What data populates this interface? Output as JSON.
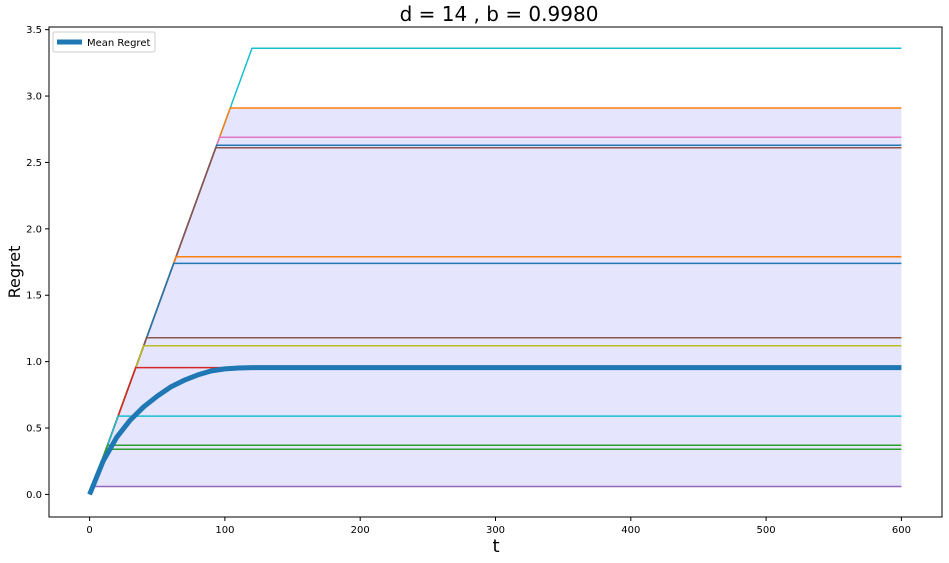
{
  "chart_data": {
    "type": "line",
    "title": "d = 14 , b = 0.9980",
    "xlabel": "t",
    "ylabel": "Regret",
    "xlim": [
      -30,
      630
    ],
    "ylim": [
      -0.17,
      3.52
    ],
    "xticks": [
      0,
      100,
      200,
      300,
      400,
      500,
      600
    ],
    "yticks": [
      0.0,
      0.5,
      1.0,
      1.5,
      2.0,
      2.5,
      3.0,
      3.5
    ],
    "ytick_labels": [
      "0.0",
      "0.5",
      "1.0",
      "1.5",
      "2.0",
      "2.5",
      "3.0",
      "3.5"
    ],
    "legend_position": "top-left",
    "legend": [
      {
        "label": "Mean Regret",
        "color": "#1f77b4"
      }
    ],
    "growth_slope": 0.028,
    "t_max": 600,
    "fill_band": {
      "lower": 0.06,
      "upper": 2.91,
      "color": "#e5e5fd"
    },
    "series": [
      {
        "final": 3.36,
        "color": "#17becf"
      },
      {
        "final": 2.91,
        "color": "#ff7f0e"
      },
      {
        "final": 2.69,
        "color": "#e377c2"
      },
      {
        "final": 2.63,
        "color": "#1f77b4"
      },
      {
        "final": 2.61,
        "color": "#8c564b"
      },
      {
        "final": 1.79,
        "color": "#ff7f0e"
      },
      {
        "final": 1.74,
        "color": "#1f77b4"
      },
      {
        "final": 1.18,
        "color": "#8c564b"
      },
      {
        "final": 1.12,
        "color": "#bcbd22"
      },
      {
        "final": 0.955,
        "color": "#d62728"
      },
      {
        "final": 0.59,
        "color": "#17becf"
      },
      {
        "final": 0.37,
        "color": "#2ca02c"
      },
      {
        "final": 0.34,
        "color": "#2ca02c"
      },
      {
        "final": 0.06,
        "color": "#9467bd"
      }
    ],
    "mean_series": {
      "name": "Mean Regret",
      "color": "#1f77b4",
      "x": [
        0,
        10,
        20,
        30,
        40,
        50,
        60,
        70,
        80,
        90,
        100,
        110,
        120,
        600
      ],
      "y": [
        0.0,
        0.25,
        0.43,
        0.56,
        0.66,
        0.74,
        0.81,
        0.86,
        0.9,
        0.93,
        0.945,
        0.952,
        0.955,
        0.955
      ]
    }
  }
}
